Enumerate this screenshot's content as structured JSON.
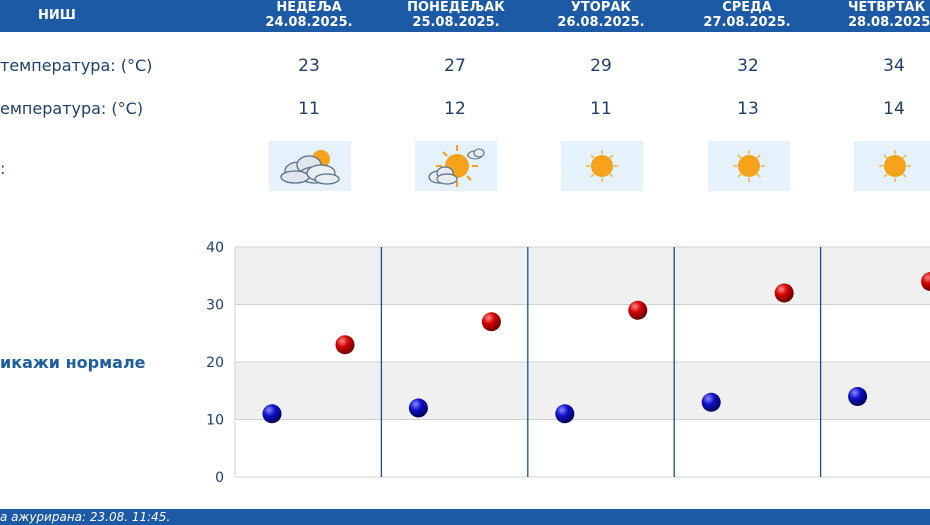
{
  "header": {
    "city": "НИШ",
    "days": [
      {
        "name": "НЕДЕЉА",
        "date": "24.08.2025."
      },
      {
        "name": "ПОНЕДЕЉАК",
        "date": "25.08.2025."
      },
      {
        "name": "УТОРАК",
        "date": "26.08.2025."
      },
      {
        "name": "СРЕДА",
        "date": "27.08.2025."
      },
      {
        "name": "ЧЕТВРТАК",
        "date": "28.08.2025."
      }
    ]
  },
  "rows": {
    "max_label": "температура: (°C)",
    "min_label": "емпература: (°C)",
    "weather_label": ":",
    "max_values": [
      "23",
      "27",
      "29",
      "32",
      "34"
    ],
    "min_values": [
      "11",
      "12",
      "11",
      "13",
      "14"
    ],
    "weather_icons": [
      "cloudy-icon",
      "partly-sunny-icon",
      "sunny-icon",
      "sunny-icon",
      "sunny-icon"
    ]
  },
  "normals_link": "икажи нормале",
  "footer": {
    "updated": "а ажурирана:  23.08.  11:45."
  },
  "colors": {
    "header_bg": "#1c5aa6",
    "max_dot": "#cc0000",
    "min_dot": "#0a0ab0",
    "icon_bg": "#e6f2fb"
  },
  "chart_data": {
    "type": "scatter",
    "title": "",
    "xlabel": "",
    "ylabel": "",
    "ylim": [
      0,
      40
    ],
    "yticks": [
      "0",
      "10",
      "20",
      "30",
      "40"
    ],
    "categories": [
      "24.08.2025.",
      "25.08.2025.",
      "26.08.2025.",
      "27.08.2025.",
      "28.08.2025."
    ],
    "series": [
      {
        "values": [
          23,
          27,
          29,
          32,
          34
        ],
        "color": "#cc0000"
      },
      {
        "values": [
          11,
          12,
          11,
          13,
          14
        ],
        "color": "#0a0ab0"
      }
    ],
    "grid": true
  }
}
